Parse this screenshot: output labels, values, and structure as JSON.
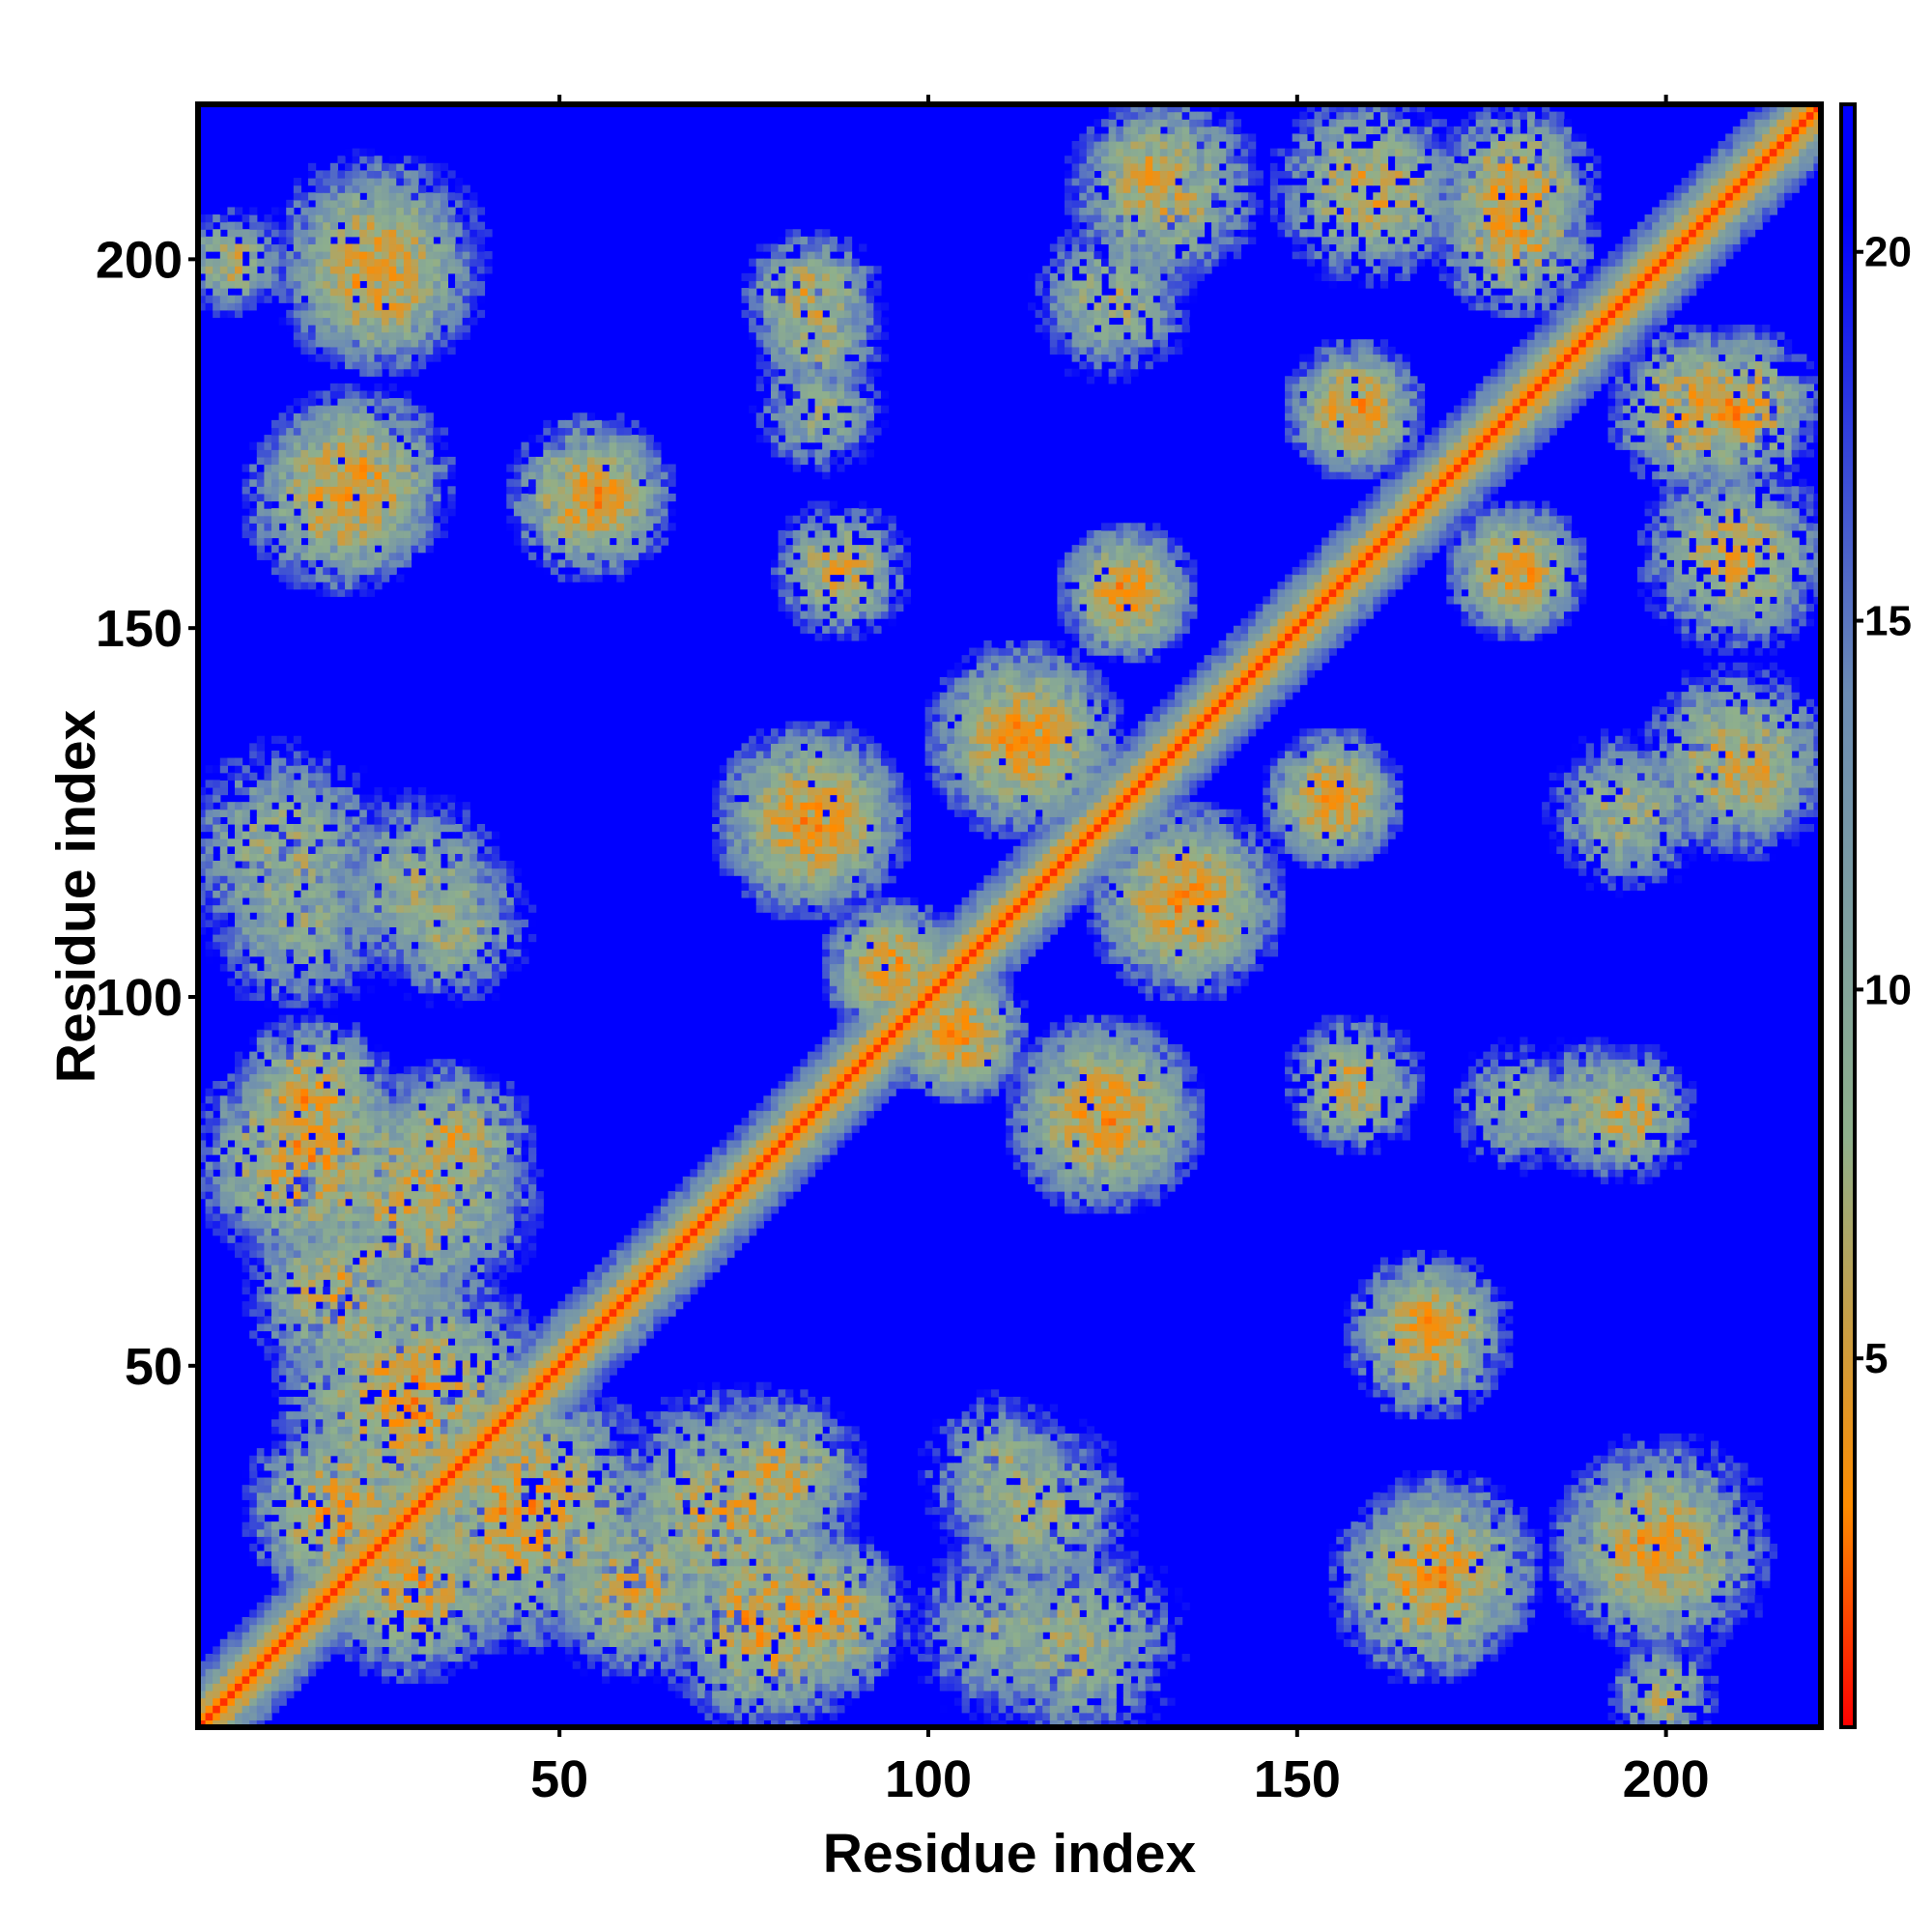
{
  "chart_data": {
    "type": "heatmap",
    "title": "",
    "xlabel": "Residue index",
    "ylabel": "Residue index",
    "xlim": [
      1,
      221
    ],
    "ylim": [
      1,
      221
    ],
    "n_residues": 221,
    "x_ticks": [
      50,
      100,
      150,
      200
    ],
    "y_ticks": [
      50,
      100,
      150,
      200
    ],
    "colorbar": {
      "ticks": [
        5,
        10,
        15,
        20
      ],
      "range": [
        0,
        22
      ],
      "colors": [
        "#ff0000",
        "#ff8c00",
        "#8fb08c",
        "#6c8cb4",
        "#0000ff"
      ],
      "color_stops": [
        0,
        3,
        8,
        14,
        20.5
      ]
    },
    "value_description": "inter-residue distance map; low values (red) near diagonal, high values (blue) saturated at >=20.5",
    "diagonal_band": {
      "value_on_diagonal": 1,
      "value_offset_1": 3,
      "value_offset_2_3": 5,
      "halo_value": 9
    },
    "contact_clusters": [
      {
        "x": 16,
        "y": 86,
        "radius": 12,
        "min_value": 5
      },
      {
        "x": 30,
        "y": 73,
        "radius": 18,
        "min_value": 6
      },
      {
        "x": 20,
        "y": 60,
        "radius": 14,
        "min_value": 6
      },
      {
        "x": 45,
        "y": 30,
        "radius": 20,
        "min_value": 5
      },
      {
        "x": 20,
        "y": 30,
        "radius": 14,
        "min_value": 5
      },
      {
        "x": 78,
        "y": 15,
        "radius": 16,
        "min_value": 5
      },
      {
        "x": 80,
        "y": 35,
        "radius": 12,
        "min_value": 6
      },
      {
        "x": 95,
        "y": 104,
        "radius": 10,
        "min_value": 5
      },
      {
        "x": 104,
        "y": 95,
        "radius": 10,
        "min_value": 5
      },
      {
        "x": 84,
        "y": 124,
        "radius": 14,
        "min_value": 5
      },
      {
        "x": 124,
        "y": 84,
        "radius": 14,
        "min_value": 5
      },
      {
        "x": 12,
        "y": 120,
        "radius": 16,
        "min_value": 8
      },
      {
        "x": 35,
        "y": 110,
        "radius": 12,
        "min_value": 8
      },
      {
        "x": 22,
        "y": 170,
        "radius": 14,
        "min_value": 5
      },
      {
        "x": 54,
        "y": 168,
        "radius": 12,
        "min_value": 5
      },
      {
        "x": 25,
        "y": 200,
        "radius": 16,
        "min_value": 6
      },
      {
        "x": 5,
        "y": 200,
        "radius": 8,
        "min_value": 7
      },
      {
        "x": 84,
        "y": 195,
        "radius": 10,
        "min_value": 6
      },
      {
        "x": 85,
        "y": 180,
        "radius": 10,
        "min_value": 9
      },
      {
        "x": 113,
        "y": 135,
        "radius": 14,
        "min_value": 5
      },
      {
        "x": 135,
        "y": 113,
        "radius": 14,
        "min_value": 5
      },
      {
        "x": 127,
        "y": 155,
        "radius": 10,
        "min_value": 5
      },
      {
        "x": 155,
        "y": 127,
        "radius": 10,
        "min_value": 5
      },
      {
        "x": 158,
        "y": 180,
        "radius": 10,
        "min_value": 5
      },
      {
        "x": 180,
        "y": 158,
        "radius": 10,
        "min_value": 5
      },
      {
        "x": 132,
        "y": 210,
        "radius": 14,
        "min_value": 6
      },
      {
        "x": 160,
        "y": 210,
        "radius": 14,
        "min_value": 6
      },
      {
        "x": 180,
        "y": 210,
        "radius": 12,
        "min_value": 5
      },
      {
        "x": 204,
        "y": 180,
        "radius": 12,
        "min_value": 5
      },
      {
        "x": 212,
        "y": 130,
        "radius": 10,
        "min_value": 6
      },
      {
        "x": 195,
        "y": 125,
        "radius": 12,
        "min_value": 8
      },
      {
        "x": 158,
        "y": 88,
        "radius": 10,
        "min_value": 6
      },
      {
        "x": 190,
        "y": 85,
        "radius": 10,
        "min_value": 8
      },
      {
        "x": 168,
        "y": 55,
        "radius": 10,
        "min_value": 5
      },
      {
        "x": 168,
        "y": 20,
        "radius": 14,
        "min_value": 5
      },
      {
        "x": 198,
        "y": 25,
        "radius": 14,
        "min_value": 5
      },
      {
        "x": 115,
        "y": 30,
        "radius": 14,
        "min_value": 8
      },
      {
        "x": 110,
        "y": 14,
        "radius": 14,
        "min_value": 9
      }
    ]
  }
}
